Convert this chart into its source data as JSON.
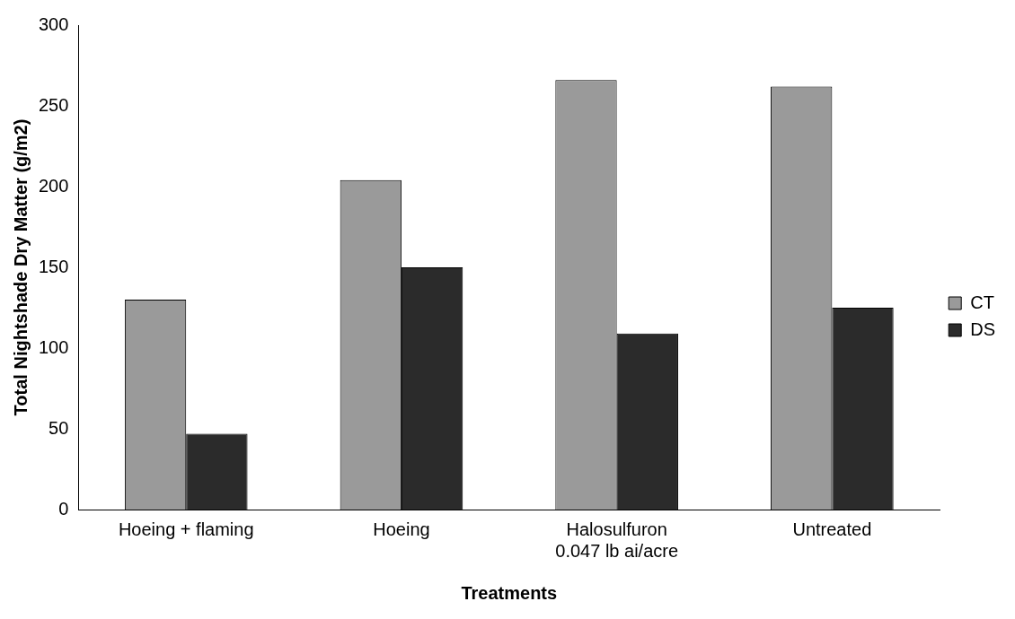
{
  "chart_data": {
    "type": "bar",
    "xlabel": "Treatments",
    "ylabel": "Total Nightshade Dry Matter (g/m2)",
    "categories": [
      "Hoeing + flaming",
      "Hoeing",
      "Halosulfuron\n0.047 lb ai/acre",
      "Untreated"
    ],
    "series": [
      {
        "name": "CT",
        "color": "#9a9a9a",
        "values": [
          130,
          204,
          266,
          262
        ]
      },
      {
        "name": "DS",
        "color": "#2b2b2b",
        "values": [
          47,
          150,
          109,
          125
        ]
      }
    ],
    "ylim": [
      0,
      300
    ],
    "yticks": [
      0,
      50,
      100,
      150,
      200,
      250,
      300
    ],
    "grid": false,
    "legend": "right"
  }
}
